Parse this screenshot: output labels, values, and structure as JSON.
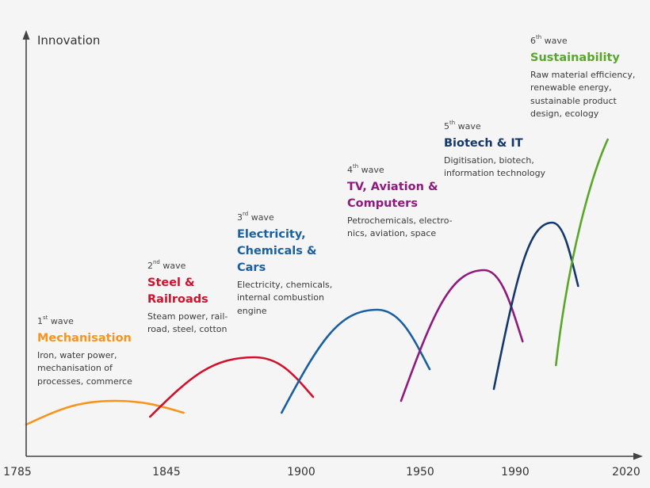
{
  "chart_data": {
    "type": "line",
    "ylabel": "Innovation",
    "xlabel": "",
    "x_ticks": [
      1785,
      1845,
      1900,
      1950,
      1990,
      2020
    ],
    "xlim": [
      1785,
      2020
    ],
    "ylim": [
      0,
      100
    ],
    "series": [
      {
        "wave_prefix": "1",
        "wave_sup": "st",
        "wave_suffix": " wave",
        "name": "Mechanisation",
        "color": "#f7941d",
        "description": "Iron, water power, mechanisation of processes, commerce",
        "points": [
          [
            1785,
            8
          ],
          [
            1823,
            14
          ],
          [
            1852,
            11
          ]
        ]
      },
      {
        "wave_prefix": "2",
        "wave_sup": "nd",
        "wave_suffix": " wave",
        "name": "Steel & Railroads",
        "color": "#d0112b",
        "description": "Steam power, rail-road, steel, cotton",
        "points": [
          [
            1838,
            10
          ],
          [
            1881,
            25
          ],
          [
            1905,
            15
          ]
        ]
      },
      {
        "wave_prefix": "3",
        "wave_sup": "rd",
        "wave_suffix": " wave",
        "name": "Electricity, Chemicals & Cars",
        "color": "#1a5fa0",
        "description": "Electricity, chemicals, internal combustion engine",
        "points": [
          [
            1892,
            11
          ],
          [
            1932,
            37
          ],
          [
            1954,
            22
          ]
        ]
      },
      {
        "wave_prefix": "4",
        "wave_sup": "th",
        "wave_suffix": " wave",
        "name": "TV, Aviation & Computers",
        "color": "#8e1a7e",
        "description": "Petrochemicals, electro-nics, aviation, space",
        "points": [
          [
            1942,
            14
          ],
          [
            1977,
            47
          ],
          [
            1992,
            29
          ]
        ]
      },
      {
        "wave_prefix": "5",
        "wave_sup": "th",
        "wave_suffix": " wave",
        "name": "Biotech & IT",
        "color": "#14386b",
        "description": "Digitisation, biotech, information technology",
        "points": [
          [
            1981,
            17
          ],
          [
            2000,
            59
          ],
          [
            2007,
            43
          ]
        ]
      },
      {
        "wave_prefix": "6",
        "wave_sup": "th",
        "wave_suffix": " wave",
        "name": "Sustainability",
        "color": "#5aa62a",
        "description": "Raw material efficiency, renewable energy, sustainable product design, ecology",
        "points": [
          [
            2001,
            23
          ],
          [
            2015,
            80
          ]
        ]
      }
    ]
  }
}
